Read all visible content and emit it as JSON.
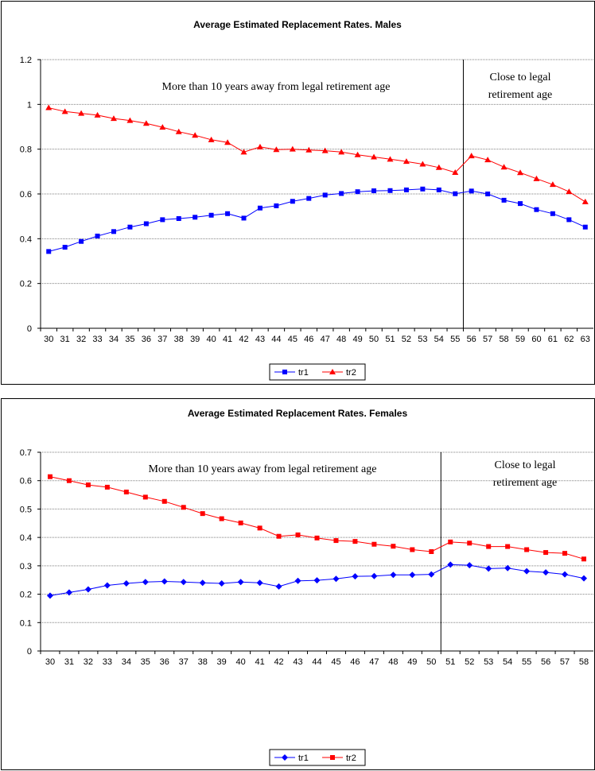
{
  "chart_data": [
    {
      "type": "line",
      "title": "Average Estimated Replacement Rates. Males",
      "xlabel": "",
      "ylabel": "",
      "ylim": [
        0,
        1.2
      ],
      "yticks": [
        "0",
        "0.2",
        "0.4",
        "0.6",
        "0.8",
        "1",
        "1.2"
      ],
      "categories": [
        "30",
        "31",
        "32",
        "33",
        "34",
        "35",
        "36",
        "37",
        "38",
        "39",
        "40",
        "41",
        "42",
        "43",
        "44",
        "45",
        "46",
        "47",
        "48",
        "49",
        "50",
        "51",
        "52",
        "53",
        "54",
        "55",
        "56",
        "57",
        "58",
        "59",
        "60",
        "61",
        "62",
        "63"
      ],
      "series": [
        {
          "name": "tr1",
          "color": "#0000ff",
          "marker": "square",
          "values": [
            0.343,
            0.362,
            0.388,
            0.412,
            0.432,
            0.452,
            0.467,
            0.485,
            0.49,
            0.496,
            0.505,
            0.512,
            0.492,
            0.537,
            0.547,
            0.567,
            0.58,
            0.595,
            0.602,
            0.61,
            0.614,
            0.615,
            0.618,
            0.622,
            0.618,
            0.601,
            0.613,
            0.6,
            0.572,
            0.557,
            0.53,
            0.512,
            0.485,
            0.452
          ]
        },
        {
          "name": "tr2",
          "color": "#ff0000",
          "marker": "triangle",
          "values": [
            0.985,
            0.968,
            0.96,
            0.952,
            0.937,
            0.928,
            0.915,
            0.898,
            0.878,
            0.862,
            0.842,
            0.83,
            0.787,
            0.81,
            0.798,
            0.8,
            0.796,
            0.793,
            0.787,
            0.775,
            0.765,
            0.755,
            0.745,
            0.733,
            0.718,
            0.696,
            0.77,
            0.752,
            0.72,
            0.695,
            0.668,
            0.642,
            0.61,
            0.565
          ]
        }
      ],
      "divider_after": "55",
      "annotations": {
        "far": "More than 10 years away from legal retirement age",
        "close_line1": "Close to legal",
        "close_line2": "retirement age"
      },
      "grid": true,
      "legend": "bottom"
    },
    {
      "type": "line",
      "title": "Average Estimated Replacement Rates. Females",
      "xlabel": "",
      "ylabel": "",
      "ylim": [
        0,
        0.7
      ],
      "yticks": [
        "0",
        "0.1",
        "0.2",
        "0.3",
        "0.4",
        "0.5",
        "0.6",
        "0.7"
      ],
      "categories": [
        "30",
        "31",
        "32",
        "33",
        "34",
        "35",
        "36",
        "37",
        "38",
        "39",
        "40",
        "41",
        "42",
        "43",
        "44",
        "45",
        "46",
        "47",
        "48",
        "49",
        "50",
        "51",
        "52",
        "53",
        "54",
        "55",
        "56",
        "57",
        "58"
      ],
      "series": [
        {
          "name": "tr1",
          "color": "#0000ff",
          "marker": "diamond",
          "values": [
            0.195,
            0.206,
            0.217,
            0.231,
            0.238,
            0.243,
            0.245,
            0.243,
            0.24,
            0.238,
            0.243,
            0.24,
            0.227,
            0.247,
            0.249,
            0.254,
            0.263,
            0.264,
            0.268,
            0.268,
            0.27,
            0.304,
            0.302,
            0.29,
            0.292,
            0.281,
            0.277,
            0.27,
            0.256
          ]
        },
        {
          "name": "tr2",
          "color": "#ff0000",
          "marker": "square",
          "values": [
            0.614,
            0.6,
            0.585,
            0.577,
            0.56,
            0.542,
            0.527,
            0.506,
            0.484,
            0.466,
            0.451,
            0.433,
            0.404,
            0.409,
            0.398,
            0.389,
            0.386,
            0.376,
            0.369,
            0.357,
            0.35,
            0.384,
            0.38,
            0.368,
            0.368,
            0.357,
            0.347,
            0.344,
            0.324
          ]
        }
      ],
      "divider_after": "50",
      "annotations": {
        "far": "More than 10 years away from legal retirement age",
        "close_line1": "Close to legal",
        "close_line2": "retirement age"
      },
      "grid": true,
      "legend": "bottom"
    }
  ]
}
